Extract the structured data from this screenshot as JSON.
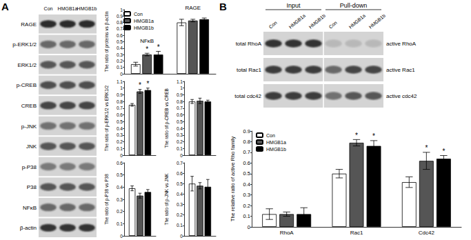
{
  "panel_labels": [
    "A",
    "B"
  ],
  "blots": [
    {
      "columns": [
        "Con",
        "HMGB1a",
        "HMGB1b"
      ],
      "rows": [
        "RAGE",
        "p-ERK1/2",
        "ERK1/2",
        "p-CREB",
        "CREB",
        "p-JNK",
        "JNK",
        "p-P38",
        "P38",
        "NFκB",
        "β-actin"
      ]
    },
    {
      "groups": [
        "Input",
        "Pull-down"
      ],
      "columns": [
        "Con",
        "HMGB1a",
        "HMGB1b",
        "Con",
        "HMGB1a",
        "HMGB1b"
      ],
      "left_rows": [
        "total RhoA",
        "total Rac1",
        "total cdc42"
      ],
      "right_rows": [
        "active RhoA",
        "active Rac1",
        "active cdc42"
      ]
    }
  ],
  "chart_data": [
    {
      "type": "bar",
      "y_label": "The ratio of proteins vs β-actin",
      "categories": [
        "NFκB",
        "RAGE"
      ],
      "series": [
        {
          "name": "Con",
          "color": "#ffffff",
          "values": [
            0.15,
            0.8
          ],
          "errors": [
            0.03,
            0.05
          ],
          "annotations": [
            null,
            null
          ]
        },
        {
          "name": "HMGB1a",
          "color": "#555555",
          "values": [
            0.3,
            0.83
          ],
          "errors": [
            0.02,
            0.02
          ],
          "annotations": [
            "*",
            null
          ]
        },
        {
          "name": "HMGB1b",
          "color": "#000000",
          "values": [
            0.3,
            0.85
          ],
          "errors": [
            0.05,
            0.02
          ],
          "annotations": [
            "*",
            null
          ]
        }
      ],
      "ylim": [
        0,
        1
      ],
      "yticks": [
        0,
        0.1,
        0.2,
        0.3,
        0.4,
        0.5,
        0.6,
        0.7,
        0.8,
        0.9,
        1
      ],
      "grid": false,
      "legend": "top-left",
      "tick_labels": "y"
    },
    {
      "type": "bar",
      "y_label": "The ratio of p-ERK1/2 vs ERK1/2",
      "categories": [
        null
      ],
      "series": [
        {
          "color": "#ffffff",
          "values": [
            0.75
          ],
          "errors": [
            0.02
          ],
          "annotations": [
            null
          ]
        },
        {
          "color": "#555555",
          "values": [
            0.95
          ],
          "errors": [
            0.03
          ],
          "annotations": [
            "*"
          ]
        },
        {
          "color": "#000000",
          "values": [
            0.97
          ],
          "errors": [
            0.03
          ],
          "annotations": [
            "*"
          ]
        }
      ],
      "ylim": [
        0,
        1.1
      ],
      "yticks": [
        0,
        0.1,
        0.2,
        0.3,
        0.4,
        0.5,
        0.6,
        0.7,
        0.8,
        0.9,
        1,
        1.1
      ],
      "grid": false,
      "tick_labels": "y"
    },
    {
      "type": "bar",
      "y_label": "The ratio of p-CREB vs CREB",
      "categories": [
        null
      ],
      "series": [
        {
          "color": "#ffffff",
          "values": [
            0.8
          ],
          "errors": [
            0.03
          ]
        },
        {
          "color": "#555555",
          "values": [
            0.81
          ],
          "errors": [
            0.04
          ]
        },
        {
          "color": "#000000",
          "values": [
            0.8
          ],
          "errors": [
            0.02
          ]
        }
      ],
      "ylim": [
        0,
        1.1
      ],
      "yticks": [
        0,
        0.1,
        0.2,
        0.3,
        0.4,
        0.5,
        0.6,
        0.7,
        0.8,
        0.9,
        1,
        1.1
      ],
      "grid": false,
      "tick_labels": "y"
    },
    {
      "type": "bar",
      "y_label": "The ratio of p-P38 vs P38",
      "categories": [
        null
      ],
      "series": [
        {
          "color": "#ffffff",
          "values": [
            0.39
          ],
          "errors": [
            0.02
          ]
        },
        {
          "color": "#555555",
          "values": [
            0.33
          ],
          "errors": [
            0.02
          ]
        },
        {
          "color": "#000000",
          "values": [
            0.36
          ],
          "errors": [
            0.02
          ]
        }
      ],
      "ylim": [
        0,
        0.6
      ],
      "yticks": [
        0,
        0.1,
        0.2,
        0.3,
        0.4,
        0.5,
        0.6
      ],
      "grid": false,
      "tick_labels": "y"
    },
    {
      "type": "bar",
      "y_label": "The ratio of p-JNK vs JNK",
      "categories": [
        null
      ],
      "series": [
        {
          "color": "#ffffff",
          "values": [
            0.5
          ],
          "errors": [
            0.07
          ]
        },
        {
          "color": "#555555",
          "values": [
            0.48
          ],
          "errors": [
            0.03
          ]
        },
        {
          "color": "#000000",
          "values": [
            0.47
          ],
          "errors": [
            0.07
          ]
        }
      ],
      "ylim": [
        0,
        0.7
      ],
      "yticks": [
        0,
        0.1,
        0.2,
        0.3,
        0.4,
        0.5,
        0.6,
        0.7
      ],
      "grid": false,
      "tick_labels": "y"
    },
    {
      "type": "bar",
      "y_label": "The relative ratio of active Rho family",
      "categories": [
        "RhoA",
        "Rac1",
        "Cdc42"
      ],
      "series": [
        {
          "name": "Con",
          "color": "#ffffff",
          "values": [
            0.12,
            0.5,
            0.42
          ],
          "errors": [
            0.05,
            0.04,
            0.05
          ],
          "annotations": [
            null,
            null,
            null
          ]
        },
        {
          "name": "HMGB1a",
          "color": "#555555",
          "values": [
            0.12,
            0.79,
            0.62
          ],
          "errors": [
            0.02,
            0.03,
            0.08
          ],
          "annotations": [
            null,
            "*",
            "*"
          ]
        },
        {
          "name": "HMGB1b",
          "color": "#000000",
          "values": [
            0.12,
            0.76,
            0.64
          ],
          "errors": [
            0.06,
            0.05,
            0.03
          ],
          "annotations": [
            null,
            "*",
            "*"
          ]
        }
      ],
      "ylim": [
        0,
        0.9
      ],
      "yticks": [
        0,
        0.1,
        0.2,
        0.3,
        0.4,
        0.5,
        0.6,
        0.7,
        0.8,
        0.9
      ],
      "grid": false,
      "legend": "top-left"
    }
  ]
}
